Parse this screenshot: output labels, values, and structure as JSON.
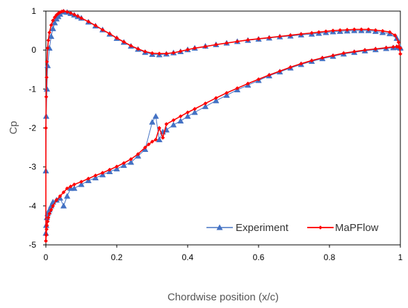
{
  "chart_data": {
    "type": "line",
    "xlabel": "Chordwise position (x/c)",
    "ylabel": "Cp",
    "xlim": [
      0,
      1
    ],
    "ylim": [
      -5,
      1
    ],
    "x_ticks": [
      "0",
      "0.2",
      "0.4",
      "0.6",
      "0.8",
      "1"
    ],
    "y_ticks": [
      "1",
      "0",
      "-1",
      "-2",
      "-3",
      "-4",
      "-5"
    ],
    "legend_position": "bottom-right",
    "grid": false,
    "series": [
      {
        "name": "Experiment",
        "color": "#4472C4",
        "marker": "triangle",
        "line_width": 1,
        "x": [
          1.0,
          0.99,
          0.97,
          0.95,
          0.93,
          0.91,
          0.89,
          0.87,
          0.85,
          0.83,
          0.81,
          0.79,
          0.77,
          0.75,
          0.72,
          0.69,
          0.66,
          0.63,
          0.6,
          0.57,
          0.54,
          0.51,
          0.48,
          0.45,
          0.42,
          0.4,
          0.38,
          0.36,
          0.34,
          0.32,
          0.3,
          0.28,
          0.26,
          0.24,
          0.22,
          0.2,
          0.18,
          0.16,
          0.14,
          0.12,
          0.1,
          0.09,
          0.08,
          0.07,
          0.06,
          0.05,
          0.04,
          0.035,
          0.03,
          0.025,
          0.02,
          0.015,
          0.01,
          0.005,
          0.003,
          0.001,
          0.0,
          0.0,
          0.001,
          0.003,
          0.005,
          0.008,
          0.01,
          0.015,
          0.02,
          0.03,
          0.04,
          0.05,
          0.06,
          0.07,
          0.08,
          0.1,
          0.12,
          0.14,
          0.16,
          0.18,
          0.2,
          0.22,
          0.24,
          0.26,
          0.28,
          0.3,
          0.31,
          0.32,
          0.33,
          0.34,
          0.36,
          0.38,
          0.4,
          0.42,
          0.45,
          0.48,
          0.51,
          0.54,
          0.57,
          0.6,
          0.63,
          0.66,
          0.69,
          0.72,
          0.75,
          0.78,
          0.81,
          0.84,
          0.87,
          0.9,
          0.93,
          0.96,
          0.98,
          0.99,
          1.0
        ],
        "y": [
          0.05,
          0.3,
          0.42,
          0.45,
          0.48,
          0.5,
          0.5,
          0.5,
          0.49,
          0.48,
          0.47,
          0.45,
          0.43,
          0.41,
          0.39,
          0.36,
          0.34,
          0.31,
          0.28,
          0.25,
          0.22,
          0.18,
          0.14,
          0.1,
          0.05,
          0.01,
          -0.04,
          -0.07,
          -0.1,
          -0.12,
          -0.11,
          -0.06,
          0.02,
          0.1,
          0.2,
          0.3,
          0.41,
          0.52,
          0.62,
          0.72,
          0.82,
          0.86,
          0.9,
          0.94,
          0.97,
          0.98,
          0.92,
          0.86,
          0.8,
          0.7,
          0.55,
          0.35,
          0.05,
          -0.4,
          -1.0,
          -1.7,
          -3.1,
          -4.7,
          -4.5,
          -4.3,
          -4.2,
          -4.15,
          -4.1,
          -4.0,
          -3.9,
          -3.85,
          -3.8,
          -4.0,
          -3.75,
          -3.55,
          -3.55,
          -3.45,
          -3.35,
          -3.28,
          -3.2,
          -3.12,
          -3.05,
          -2.96,
          -2.88,
          -2.72,
          -2.55,
          -1.85,
          -1.7,
          -2.3,
          -2.1,
          -2.05,
          -1.92,
          -1.82,
          -1.7,
          -1.6,
          -1.45,
          -1.3,
          -1.16,
          -1.02,
          -0.9,
          -0.78,
          -0.66,
          -0.56,
          -0.46,
          -0.37,
          -0.29,
          -0.22,
          -0.16,
          -0.1,
          -0.06,
          -0.02,
          0.01,
          0.04,
          0.06,
          0.07,
          0.06
        ]
      },
      {
        "name": "MaPFlow",
        "color": "#FF0000",
        "marker": "diamond",
        "line_width": 1.6,
        "x": [
          1.0,
          0.995,
          0.985,
          0.97,
          0.95,
          0.93,
          0.91,
          0.89,
          0.87,
          0.85,
          0.83,
          0.81,
          0.79,
          0.77,
          0.75,
          0.72,
          0.69,
          0.66,
          0.63,
          0.6,
          0.57,
          0.54,
          0.51,
          0.48,
          0.45,
          0.42,
          0.4,
          0.38,
          0.36,
          0.34,
          0.32,
          0.3,
          0.28,
          0.26,
          0.24,
          0.22,
          0.2,
          0.18,
          0.16,
          0.14,
          0.12,
          0.1,
          0.09,
          0.08,
          0.07,
          0.06,
          0.05,
          0.045,
          0.04,
          0.035,
          0.03,
          0.025,
          0.02,
          0.015,
          0.01,
          0.007,
          0.005,
          0.003,
          0.002,
          0.001,
          0.0,
          0.0,
          0.001,
          0.002,
          0.003,
          0.005,
          0.007,
          0.01,
          0.015,
          0.02,
          0.03,
          0.04,
          0.05,
          0.06,
          0.07,
          0.08,
          0.1,
          0.12,
          0.14,
          0.16,
          0.18,
          0.2,
          0.22,
          0.24,
          0.26,
          0.28,
          0.29,
          0.3,
          0.31,
          0.32,
          0.33,
          0.34,
          0.36,
          0.38,
          0.4,
          0.42,
          0.45,
          0.48,
          0.51,
          0.54,
          0.57,
          0.6,
          0.63,
          0.66,
          0.69,
          0.72,
          0.75,
          0.78,
          0.81,
          0.84,
          0.87,
          0.9,
          0.93,
          0.96,
          0.98,
          0.99,
          0.995,
          1.0
        ],
        "y": [
          -0.1,
          0.2,
          0.38,
          0.46,
          0.49,
          0.51,
          0.53,
          0.53,
          0.53,
          0.52,
          0.51,
          0.5,
          0.48,
          0.46,
          0.44,
          0.41,
          0.38,
          0.35,
          0.32,
          0.29,
          0.26,
          0.22,
          0.18,
          0.14,
          0.09,
          0.05,
          0.01,
          -0.03,
          -0.07,
          -0.09,
          -0.09,
          -0.08,
          -0.04,
          0.03,
          0.11,
          0.21,
          0.31,
          0.42,
          0.52,
          0.63,
          0.73,
          0.82,
          0.87,
          0.91,
          0.95,
          0.98,
          1.0,
          0.99,
          0.97,
          0.94,
          0.9,
          0.84,
          0.76,
          0.64,
          0.45,
          0.25,
          0.05,
          -0.3,
          -0.7,
          -1.2,
          -2.0,
          -4.9,
          -4.75,
          -4.6,
          -4.5,
          -4.4,
          -4.3,
          -4.2,
          -4.1,
          -4.0,
          -3.85,
          -3.75,
          -3.65,
          -3.55,
          -3.5,
          -3.45,
          -3.38,
          -3.3,
          -3.22,
          -3.15,
          -3.07,
          -2.99,
          -2.9,
          -2.8,
          -2.67,
          -2.5,
          -2.42,
          -2.35,
          -2.3,
          -2.0,
          -2.25,
          -1.9,
          -1.8,
          -1.7,
          -1.6,
          -1.51,
          -1.37,
          -1.23,
          -1.1,
          -0.98,
          -0.86,
          -0.75,
          -0.64,
          -0.54,
          -0.44,
          -0.35,
          -0.27,
          -0.2,
          -0.14,
          -0.08,
          -0.04,
          0.0,
          0.03,
          0.06,
          0.08,
          0.09,
          0.08,
          0.05
        ]
      }
    ]
  }
}
